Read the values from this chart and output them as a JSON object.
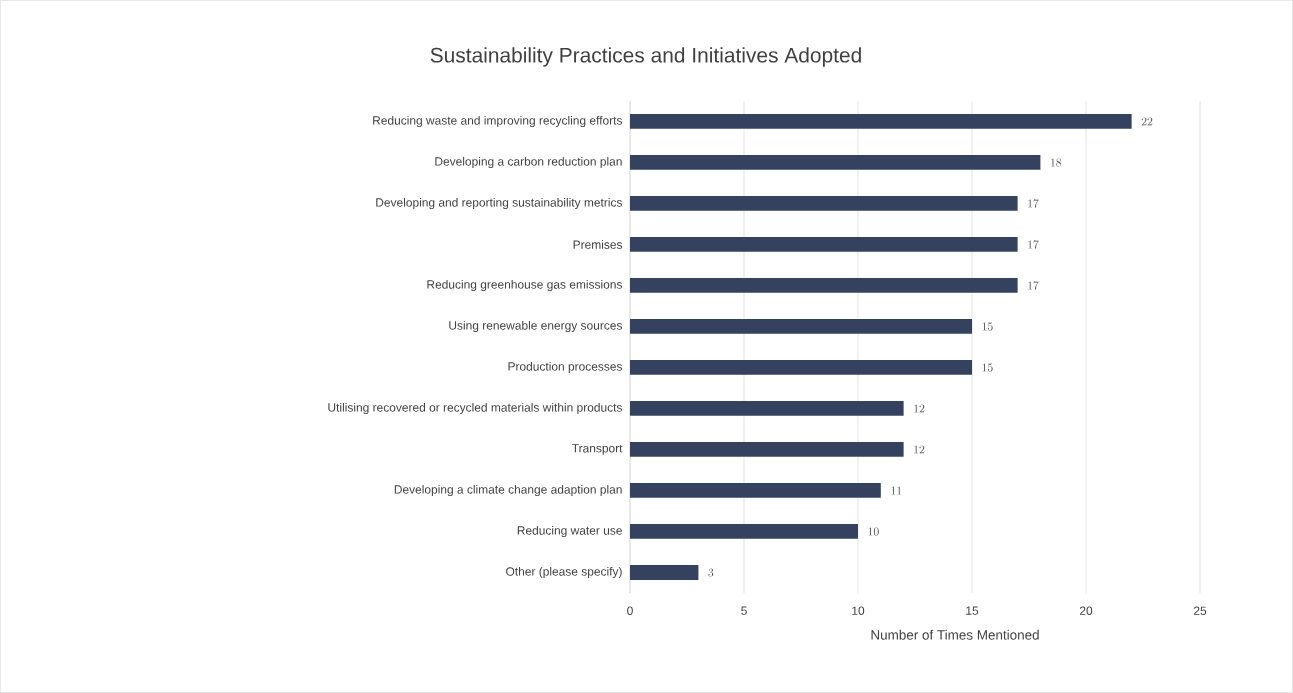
{
  "chart_data": {
    "type": "bar",
    "orientation": "horizontal",
    "title": "Sustainability Practices and Initiatives Adopted",
    "xlabel": "Number of Times Mentioned",
    "categories": [
      "Reducing waste and improving recycling efforts",
      "Developing a carbon reduction plan",
      "Developing and reporting sustainability metrics",
      "Premises",
      "Reducing greenhouse gas emissions",
      "Using renewable energy sources",
      "Production processes",
      "Utilising recovered or recycled materials within products",
      "Transport",
      "Developing a climate change adaption plan",
      "Reducing water use",
      "Other (please specify)"
    ],
    "values": [
      22,
      18,
      17,
      17,
      17,
      15,
      15,
      12,
      12,
      11,
      10,
      3
    ],
    "color": "#344260",
    "xlim": [
      0,
      25
    ],
    "xticks": [
      0,
      5,
      10,
      15,
      20,
      25
    ],
    "grid": "x",
    "data_labels": true
  }
}
